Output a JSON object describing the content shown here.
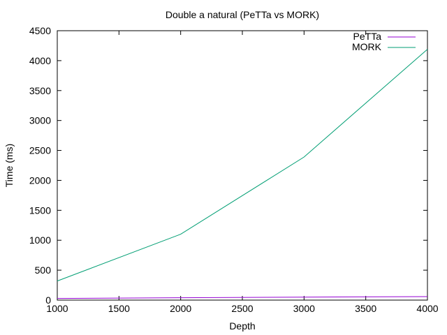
{
  "chart_data": {
    "type": "line",
    "title": "Double a natural (PeTTa vs MORK)",
    "xlabel": "Depth",
    "ylabel": "Time (ms)",
    "xlim": [
      1000,
      4000
    ],
    "ylim": [
      0,
      4500
    ],
    "xticks": [
      1000,
      1500,
      2000,
      2500,
      3000,
      3500,
      4000
    ],
    "yticks": [
      0,
      500,
      1000,
      1500,
      2000,
      2500,
      3000,
      3500,
      4000,
      4500
    ],
    "grid": false,
    "legend_position": "top-right",
    "series": [
      {
        "name": "PeTTa",
        "color": "#9400d3",
        "x": [
          1000,
          2000,
          3000,
          4000
        ],
        "y": [
          28,
          40,
          50,
          58
        ]
      },
      {
        "name": "MORK",
        "color": "#009e73",
        "x": [
          1000,
          2000,
          3000,
          4000
        ],
        "y": [
          320,
          1100,
          2390,
          4190
        ]
      }
    ]
  }
}
